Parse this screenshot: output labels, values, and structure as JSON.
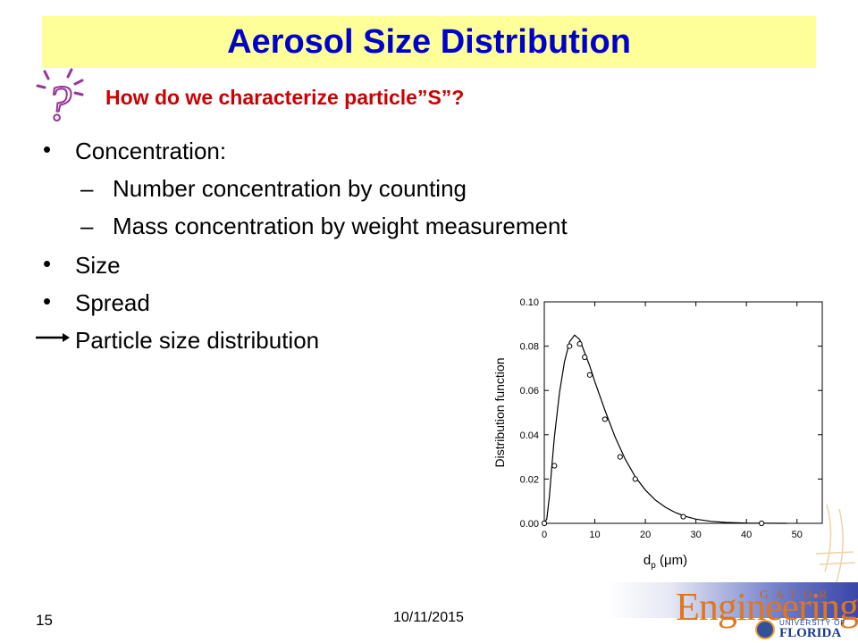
{
  "slide": {
    "title": "Aerosol Size Distribution",
    "question": "How do we characterize particle”S”?",
    "bullets": [
      {
        "label": "Concentration:",
        "level": 1
      },
      {
        "label": "Number concentration by counting",
        "level": 2
      },
      {
        "label": "Mass concentration by weight measurement",
        "level": 2
      },
      {
        "label": "Size",
        "level": 1
      },
      {
        "label": "Spread",
        "level": 1
      }
    ],
    "conclusion": "Particle size distribution",
    "bullet_char": "•",
    "dash_char": "–",
    "page_number": "15",
    "date": "10/11/2015"
  },
  "logo": {
    "word": "Engineering",
    "top_letters": "GATOR",
    "university": "UNIVERSITY OF",
    "name": "FLORIDA"
  },
  "colors": {
    "title_bg": "#ffff99",
    "title_text": "#0000cc",
    "question_text": "#cc0000",
    "icon_color": "#993399"
  },
  "chart_data": {
    "type": "line",
    "title": "",
    "xlabel": "d",
    "xlabel_sub": "p",
    "xlabel_unit": "(μm)",
    "ylabel": "Distribution function",
    "xlim": [
      0,
      55
    ],
    "ylim": [
      0,
      0.1
    ],
    "xticks": [
      0,
      10,
      20,
      30,
      40,
      50
    ],
    "xtick_labels": [
      "0",
      "10",
      "20",
      "30",
      "40",
      "50"
    ],
    "yticks": [
      0,
      0.02,
      0.04,
      0.06,
      0.08,
      0.1
    ],
    "ytick_labels": [
      "0.00",
      "0.02",
      "0.04",
      "0.06",
      "0.08",
      "0.10"
    ],
    "grid": false,
    "series": [
      {
        "kind": "curve",
        "points": [
          [
            0,
            0
          ],
          [
            0.5,
            0.002
          ],
          [
            1,
            0.012
          ],
          [
            1.5,
            0.026
          ],
          [
            2,
            0.039
          ],
          [
            3,
            0.059
          ],
          [
            4,
            0.073
          ],
          [
            5,
            0.082
          ],
          [
            6,
            0.085
          ],
          [
            7,
            0.083
          ],
          [
            8,
            0.077
          ],
          [
            9,
            0.071
          ],
          [
            10,
            0.064
          ],
          [
            12,
            0.051
          ],
          [
            14,
            0.039
          ],
          [
            16,
            0.029
          ],
          [
            18,
            0.021
          ],
          [
            20,
            0.015
          ],
          [
            22,
            0.0105
          ],
          [
            24,
            0.0072
          ],
          [
            26,
            0.0048
          ],
          [
            28,
            0.0031
          ],
          [
            30,
            0.0019
          ],
          [
            33,
            0.0009
          ],
          [
            36,
            0.0004
          ],
          [
            40,
            0.00012
          ],
          [
            44,
            3e-05
          ],
          [
            48,
            0.0
          ]
        ]
      },
      {
        "kind": "markers",
        "points": [
          [
            0,
            0.0
          ],
          [
            2,
            0.026
          ],
          [
            5,
            0.08
          ],
          [
            7,
            0.081
          ],
          [
            8,
            0.075
          ],
          [
            9,
            0.067
          ],
          [
            12,
            0.047
          ],
          [
            15,
            0.03
          ],
          [
            18,
            0.02
          ],
          [
            27.5,
            0.003
          ],
          [
            43,
            0.0
          ]
        ]
      }
    ]
  }
}
